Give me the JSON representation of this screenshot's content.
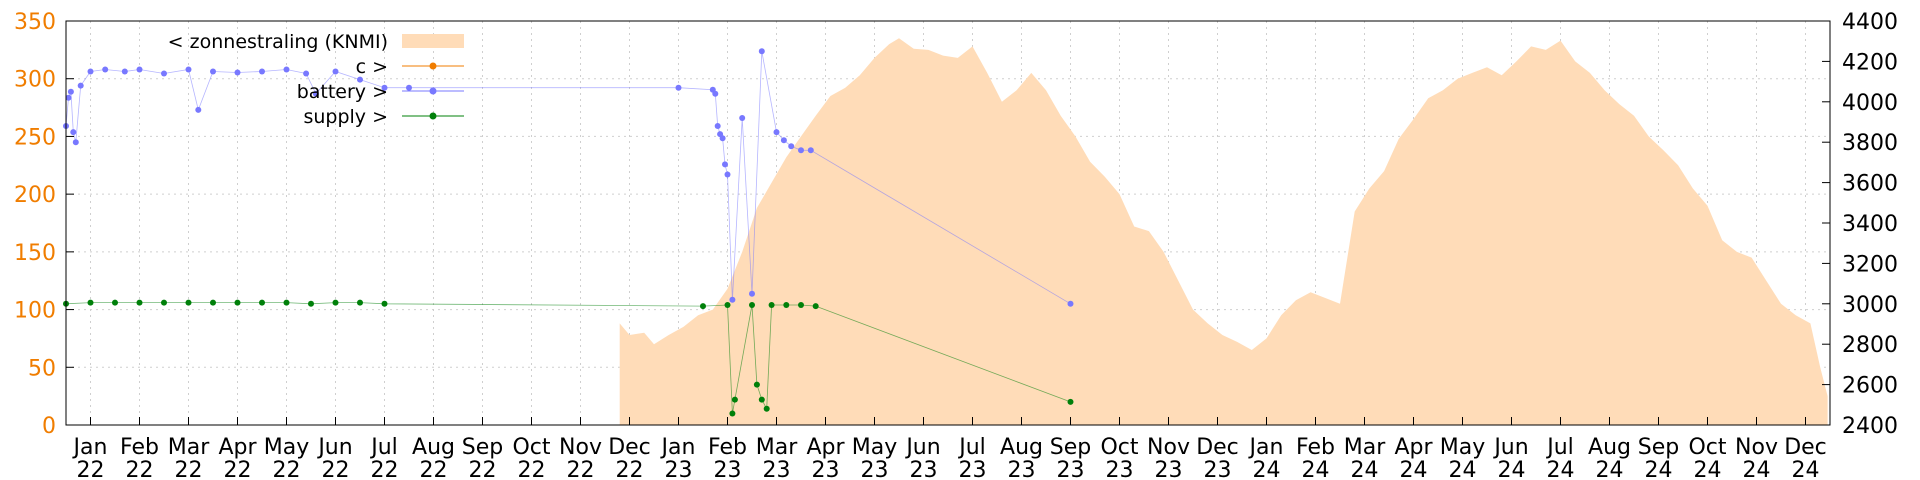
{
  "chart_data": {
    "type": "area",
    "y_left": {
      "range": [
        0,
        350
      ],
      "ticks": [
        0,
        50,
        100,
        150,
        200,
        250,
        300,
        350
      ],
      "color": "#f07d00"
    },
    "y_right": {
      "range": [
        2400,
        4400
      ],
      "ticks": [
        2400,
        2600,
        2800,
        3000,
        3200,
        3400,
        3600,
        3800,
        4000,
        4200,
        4400
      ],
      "color": "#000000"
    },
    "x": {
      "range_months": [
        0,
        36
      ],
      "ticks": [
        {
          "m": 0.5,
          "line1": "Jan",
          "line2": "22"
        },
        {
          "m": 1.5,
          "line1": "Feb",
          "line2": "22"
        },
        {
          "m": 2.5,
          "line1": "Mar",
          "line2": "22"
        },
        {
          "m": 3.5,
          "line1": "Apr",
          "line2": "22"
        },
        {
          "m": 4.5,
          "line1": "May",
          "line2": "22"
        },
        {
          "m": 5.5,
          "line1": "Jun",
          "line2": "22"
        },
        {
          "m": 6.5,
          "line1": "Jul",
          "line2": "22"
        },
        {
          "m": 7.5,
          "line1": "Aug",
          "line2": "22"
        },
        {
          "m": 8.5,
          "line1": "Sep",
          "line2": "22"
        },
        {
          "m": 9.5,
          "line1": "Oct",
          "line2": "22"
        },
        {
          "m": 10.5,
          "line1": "Nov",
          "line2": "22"
        },
        {
          "m": 11.5,
          "line1": "Dec",
          "line2": "22"
        },
        {
          "m": 12.5,
          "line1": "Jan",
          "line2": "23"
        },
        {
          "m": 13.5,
          "line1": "Feb",
          "line2": "23"
        },
        {
          "m": 14.5,
          "line1": "Mar",
          "line2": "23"
        },
        {
          "m": 15.5,
          "line1": "Apr",
          "line2": "23"
        },
        {
          "m": 16.5,
          "line1": "May",
          "line2": "23"
        },
        {
          "m": 17.5,
          "line1": "Jun",
          "line2": "23"
        },
        {
          "m": 18.5,
          "line1": "Jul",
          "line2": "23"
        },
        {
          "m": 19.5,
          "line1": "Aug",
          "line2": "23"
        },
        {
          "m": 20.5,
          "line1": "Sep",
          "line2": "23"
        },
        {
          "m": 21.5,
          "line1": "Oct",
          "line2": "23"
        },
        {
          "m": 22.5,
          "line1": "Nov",
          "line2": "23"
        },
        {
          "m": 23.5,
          "line1": "Dec",
          "line2": "23"
        },
        {
          "m": 24.5,
          "line1": "Jan",
          "line2": "24"
        },
        {
          "m": 25.5,
          "line1": "Feb",
          "line2": "24"
        },
        {
          "m": 26.5,
          "line1": "Mar",
          "line2": "24"
        },
        {
          "m": 27.5,
          "line1": "Apr",
          "line2": "24"
        },
        {
          "m": 28.5,
          "line1": "May",
          "line2": "24"
        },
        {
          "m": 29.5,
          "line1": "Jun",
          "line2": "24"
        },
        {
          "m": 30.5,
          "line1": "Jul",
          "line2": "24"
        },
        {
          "m": 31.5,
          "line1": "Aug",
          "line2": "24"
        },
        {
          "m": 32.5,
          "line1": "Sep",
          "line2": "24"
        },
        {
          "m": 33.5,
          "line1": "Oct",
          "line2": "24"
        },
        {
          "m": 34.5,
          "line1": "Nov",
          "line2": "24"
        },
        {
          "m": 35.5,
          "line1": "Dec",
          "line2": "24"
        }
      ]
    },
    "grid": true,
    "legend": {
      "placement": "top-left",
      "entries": [
        {
          "label": "< zonnestraling (KNMI)",
          "color": "#ffdcb8",
          "style": "box"
        },
        {
          "label": "c >",
          "color": "#f07d00",
          "style": "line-point"
        },
        {
          "label": "battery >",
          "color": "#7878ff",
          "style": "line-point"
        },
        {
          "label": "supply >",
          "color": "#00800a",
          "style": "line-point"
        }
      ]
    },
    "series": [
      {
        "name": "< zonnestraling (KNMI)",
        "axis": "left",
        "color": "#ffdcb8",
        "kind": "area",
        "points": [
          [
            11.3,
            0
          ],
          [
            11.3,
            88
          ],
          [
            11.5,
            78
          ],
          [
            11.8,
            80
          ],
          [
            12.0,
            70
          ],
          [
            12.3,
            78
          ],
          [
            12.6,
            85
          ],
          [
            12.9,
            95
          ],
          [
            13.2,
            100
          ],
          [
            13.5,
            118
          ],
          [
            13.8,
            150
          ],
          [
            14.1,
            188
          ],
          [
            14.4,
            210
          ],
          [
            14.7,
            232
          ],
          [
            15.0,
            250
          ],
          [
            15.3,
            268
          ],
          [
            15.6,
            285
          ],
          [
            15.9,
            292
          ],
          [
            16.2,
            303
          ],
          [
            16.5,
            318
          ],
          [
            16.8,
            330
          ],
          [
            17.0,
            335
          ],
          [
            17.3,
            326
          ],
          [
            17.6,
            325
          ],
          [
            17.9,
            320
          ],
          [
            18.2,
            318
          ],
          [
            18.5,
            328
          ],
          [
            18.8,
            305
          ],
          [
            19.1,
            280
          ],
          [
            19.4,
            290
          ],
          [
            19.7,
            305
          ],
          [
            20.0,
            290
          ],
          [
            20.3,
            268
          ],
          [
            20.6,
            250
          ],
          [
            20.9,
            228
          ],
          [
            21.2,
            215
          ],
          [
            21.5,
            200
          ],
          [
            21.8,
            172
          ],
          [
            22.1,
            168
          ],
          [
            22.4,
            150
          ],
          [
            22.7,
            125
          ],
          [
            23.0,
            100
          ],
          [
            23.3,
            88
          ],
          [
            23.6,
            78
          ],
          [
            23.9,
            72
          ],
          [
            24.2,
            65
          ],
          [
            24.5,
            75
          ],
          [
            24.8,
            95
          ],
          [
            25.1,
            108
          ],
          [
            25.4,
            115
          ],
          [
            25.7,
            110
          ],
          [
            26.0,
            105
          ],
          [
            26.3,
            185
          ],
          [
            26.6,
            205
          ],
          [
            26.9,
            220
          ],
          [
            27.2,
            248
          ],
          [
            27.5,
            265
          ],
          [
            27.8,
            283
          ],
          [
            28.1,
            290
          ],
          [
            28.4,
            300
          ],
          [
            28.7,
            305
          ],
          [
            29.0,
            310
          ],
          [
            29.3,
            303
          ],
          [
            29.6,
            315
          ],
          [
            29.9,
            328
          ],
          [
            30.2,
            325
          ],
          [
            30.5,
            333
          ],
          [
            30.8,
            315
          ],
          [
            31.1,
            305
          ],
          [
            31.4,
            290
          ],
          [
            31.7,
            278
          ],
          [
            32.0,
            268
          ],
          [
            32.3,
            250
          ],
          [
            32.6,
            238
          ],
          [
            32.9,
            225
          ],
          [
            33.2,
            205
          ],
          [
            33.5,
            190
          ],
          [
            33.8,
            160
          ],
          [
            34.1,
            150
          ],
          [
            34.4,
            145
          ],
          [
            34.7,
            125
          ],
          [
            35.0,
            105
          ],
          [
            35.3,
            95
          ],
          [
            35.6,
            88
          ],
          [
            35.8,
            50
          ],
          [
            35.95,
            25
          ],
          [
            35.95,
            0
          ]
        ]
      },
      {
        "name": "battery >",
        "axis": "right",
        "color": "#7878ff",
        "kind": "line-point",
        "points": [
          [
            0.0,
            3880
          ],
          [
            0.05,
            4020
          ],
          [
            0.1,
            4050
          ],
          [
            0.15,
            3850
          ],
          [
            0.2,
            3800
          ],
          [
            0.3,
            4080
          ],
          [
            0.5,
            4150
          ],
          [
            0.8,
            4160
          ],
          [
            1.2,
            4150
          ],
          [
            1.5,
            4160
          ],
          [
            2.0,
            4140
          ],
          [
            2.5,
            4160
          ],
          [
            2.7,
            3960
          ],
          [
            3.0,
            4150
          ],
          [
            3.5,
            4145
          ],
          [
            4.0,
            4150
          ],
          [
            4.5,
            4160
          ],
          [
            4.9,
            4140
          ],
          [
            5.1,
            4040
          ],
          [
            5.5,
            4150
          ],
          [
            6.0,
            4110
          ],
          [
            6.5,
            4070
          ],
          [
            7.0,
            4070
          ],
          [
            12.5,
            4070
          ],
          [
            13.2,
            4060
          ],
          [
            13.25,
            4040
          ],
          [
            13.3,
            3880
          ],
          [
            13.35,
            3840
          ],
          [
            13.4,
            3820
          ],
          [
            13.45,
            3690
          ],
          [
            13.5,
            3640
          ],
          [
            13.6,
            3020
          ],
          [
            13.8,
            3920
          ],
          [
            14.0,
            3050
          ],
          [
            14.2,
            4250
          ],
          [
            14.5,
            3850
          ],
          [
            14.65,
            3810
          ],
          [
            14.8,
            3780
          ],
          [
            15.0,
            3760
          ],
          [
            15.2,
            3760
          ],
          [
            20.5,
            3000
          ]
        ]
      },
      {
        "name": "supply >",
        "axis": "left",
        "color": "#00800a",
        "kind": "line-point",
        "points": [
          [
            0.0,
            105
          ],
          [
            0.5,
            106
          ],
          [
            1.0,
            106
          ],
          [
            1.5,
            106
          ],
          [
            2.0,
            106
          ],
          [
            2.5,
            106
          ],
          [
            3.0,
            106
          ],
          [
            3.5,
            106
          ],
          [
            4.0,
            106
          ],
          [
            4.5,
            106
          ],
          [
            5.0,
            105
          ],
          [
            5.5,
            106
          ],
          [
            6.0,
            106
          ],
          [
            6.5,
            105
          ],
          [
            13.0,
            103
          ],
          [
            13.5,
            104
          ],
          [
            13.6,
            10
          ],
          [
            13.65,
            22
          ],
          [
            14.0,
            104
          ],
          [
            14.1,
            35
          ],
          [
            14.2,
            22
          ],
          [
            14.3,
            14
          ],
          [
            14.4,
            104
          ],
          [
            14.7,
            104
          ],
          [
            15.0,
            104
          ],
          [
            15.3,
            103
          ],
          [
            20.5,
            20
          ]
        ]
      }
    ]
  }
}
